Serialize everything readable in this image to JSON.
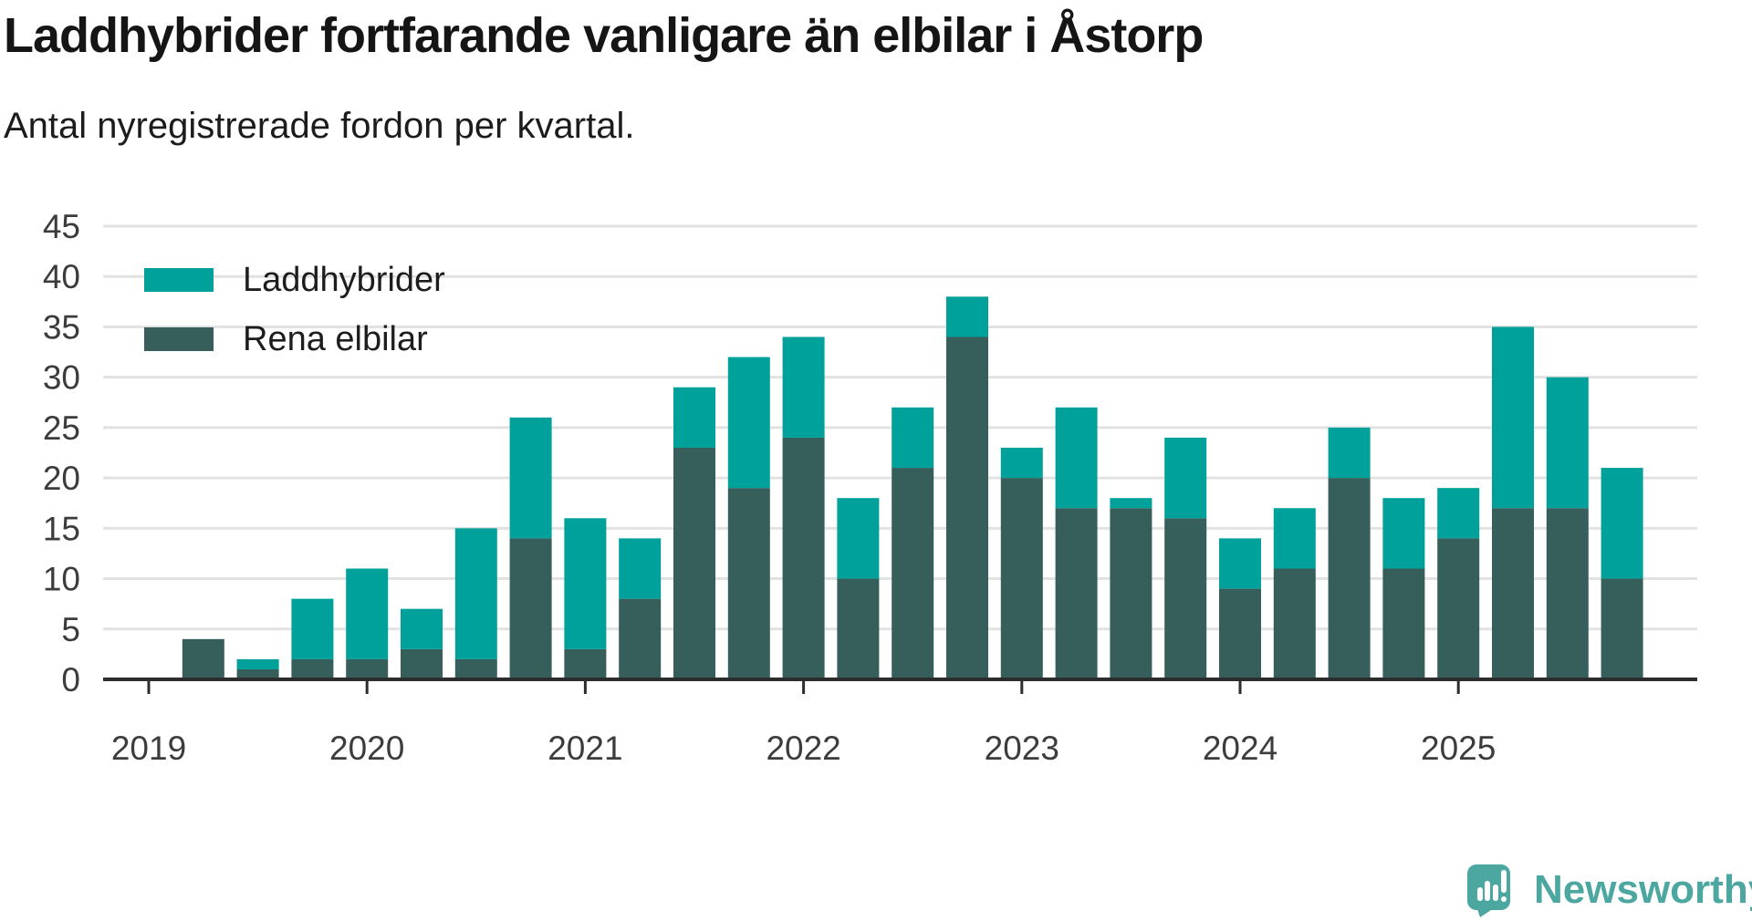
{
  "header": {
    "title": "Laddhybrider fortfarande vanligare än elbilar i Åstorp",
    "subtitle": "Antal nyregistrerade fordon per kvartal."
  },
  "legend": {
    "items": [
      {
        "label": "Laddhybrider",
        "color": "#00a19a"
      },
      {
        "label": "Rena elbilar",
        "color": "#365f5b"
      }
    ]
  },
  "chart_data": {
    "type": "bar",
    "stacked": true,
    "title": "Laddhybrider fortfarande vanligare än elbilar i Åstorp",
    "subtitle": "Antal nyregistrerade fordon per kvartal.",
    "categories": [
      "2019 K2",
      "2019 K3",
      "2019 K4",
      "2020 K1",
      "2020 K2",
      "2020 K3",
      "2020 K4",
      "2021 K1",
      "2021 K2",
      "2021 K3",
      "2021 K4",
      "2022 K1",
      "2022 K2",
      "2022 K3",
      "2022 K4",
      "2023 K1",
      "2023 K2",
      "2023 K3",
      "2023 K4",
      "2024 K1",
      "2024 K2",
      "2024 K3",
      "2024 K4",
      "2025 K1",
      "2025 K2",
      "2025 K3",
      "2025 K4"
    ],
    "series": [
      {
        "name": "Laddhybrider",
        "color": "#00a19a",
        "stack_index": 1,
        "values": [
          0,
          1,
          6,
          9,
          4,
          13,
          12,
          13,
          6,
          6,
          13,
          10,
          8,
          6,
          4,
          3,
          10,
          1,
          8,
          5,
          6,
          5,
          7,
          5,
          18,
          13,
          11
        ]
      },
      {
        "name": "Rena elbilar",
        "color": "#365f5b",
        "stack_index": 0,
        "values": [
          4,
          1,
          2,
          2,
          3,
          2,
          14,
          3,
          8,
          23,
          19,
          24,
          10,
          21,
          34,
          20,
          17,
          17,
          16,
          9,
          11,
          20,
          11,
          14,
          17,
          17,
          10
        ]
      }
    ],
    "totals": [
      4,
      2,
      8,
      11,
      7,
      15,
      26,
      16,
      14,
      29,
      32,
      34,
      18,
      27,
      38,
      23,
      27,
      18,
      24,
      14,
      17,
      25,
      18,
      19,
      35,
      30,
      21
    ],
    "x_tick_labels": [
      "2019",
      "2020",
      "2021",
      "2022",
      "2023",
      "2024",
      "2025"
    ],
    "y_ticks": [
      0,
      5,
      10,
      15,
      20,
      25,
      30,
      35,
      40,
      45
    ],
    "ylim": [
      0,
      45
    ],
    "xlabel": "",
    "ylabel": "",
    "grid": "horizontal",
    "legend_position": "top-left-inside"
  },
  "colors": {
    "grid": "#e2e2e2",
    "axis": "#2d2d2d",
    "tick_label": "#3c3c3c"
  },
  "branding": {
    "logo_text": "Newsworthy",
    "logo_color": "#4ca7a1",
    "logo_icon": "speech-bubble-bar-chart-icon"
  }
}
